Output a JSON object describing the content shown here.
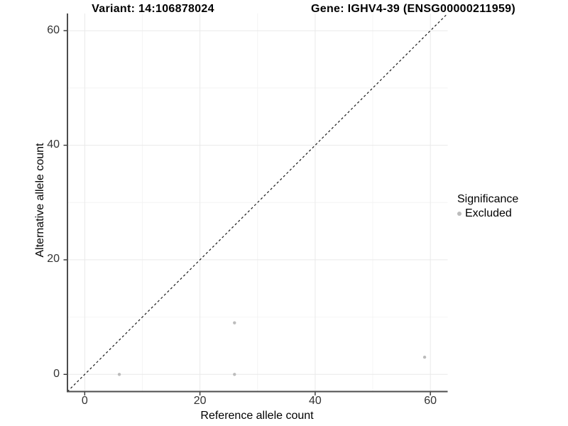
{
  "chart_data": {
    "type": "scatter",
    "titles": {
      "variant": "Variant: 14:106878024",
      "gene": "Gene: IGHV4-39 (ENSG00000211959)"
    },
    "xlabel": "Reference allele count",
    "ylabel": "Alternative allele count",
    "xlim": [
      -3,
      63
    ],
    "ylim": [
      -3,
      63
    ],
    "x_ticks": [
      0,
      20,
      40,
      60
    ],
    "y_ticks": [
      0,
      20,
      40,
      60
    ],
    "minor_ticks": [
      10,
      30,
      50
    ],
    "grid": true,
    "series": [
      {
        "name": "Excluded",
        "color": "#bcbcbc",
        "points": [
          [
            6,
            0
          ],
          [
            26,
            0
          ],
          [
            26,
            9
          ],
          [
            59,
            3
          ]
        ]
      }
    ],
    "reference_line": {
      "type": "identity y=x",
      "style": "dashed",
      "color": "#1a1a1a",
      "from": [
        -3,
        -3
      ],
      "to": [
        63,
        63
      ]
    },
    "legend": {
      "title": "Significance",
      "position": "right",
      "entries": [
        {
          "label": "Excluded",
          "color": "#bcbcbc"
        }
      ]
    },
    "colors": {
      "point": "#bcbcbc",
      "major_grid": "#e9e9e9",
      "minor_grid": "#f4f4f4",
      "axis_line": "#4d4d4d",
      "tick_mark": "#333333",
      "tick_text": "#333333",
      "title_text": "#000000"
    }
  }
}
